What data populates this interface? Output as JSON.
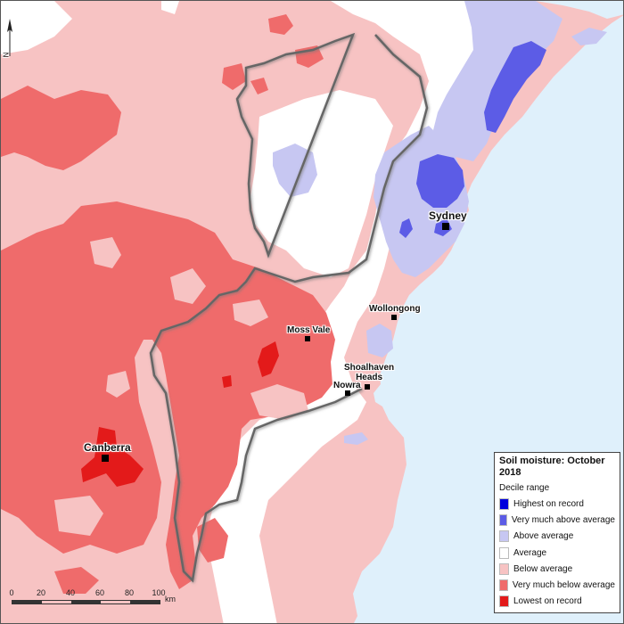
{
  "map": {
    "title": "Soil moisture: October 2018",
    "legend": {
      "subtitle": "Decile range",
      "items": [
        {
          "label": "Highest on record",
          "color": "#0000dd"
        },
        {
          "label": "Very much above average",
          "color": "#5c5ce6"
        },
        {
          "label": "Above average",
          "color": "#c7c7f2"
        },
        {
          "label": "Average",
          "color": "#ffffff"
        },
        {
          "label": "Below average",
          "color": "#f7c3c3"
        },
        {
          "label": "Very much below average",
          "color": "#ef6b6b"
        },
        {
          "label": "Lowest on record",
          "color": "#e31a1a"
        }
      ]
    },
    "places": {
      "sydney": "Sydney",
      "wollongong": "Wollongong",
      "moss_vale": "Moss Vale",
      "shoalhaven_heads": "Shoalhaven\nHeads",
      "nowra": "Nowra",
      "canberra": "Canberra"
    },
    "scale": {
      "ticks": [
        "0",
        "20",
        "40",
        "60",
        "80",
        "100"
      ],
      "unit": "km"
    },
    "north_label": "N",
    "colors": {
      "ocean": "#dff0fb",
      "average": "#ffffff",
      "below_average": "#f7c3c3",
      "very_much_below": "#ef6b6b",
      "lowest": "#e31a1a",
      "above_average": "#c7c7f2",
      "very_much_above": "#5c5ce6"
    }
  }
}
